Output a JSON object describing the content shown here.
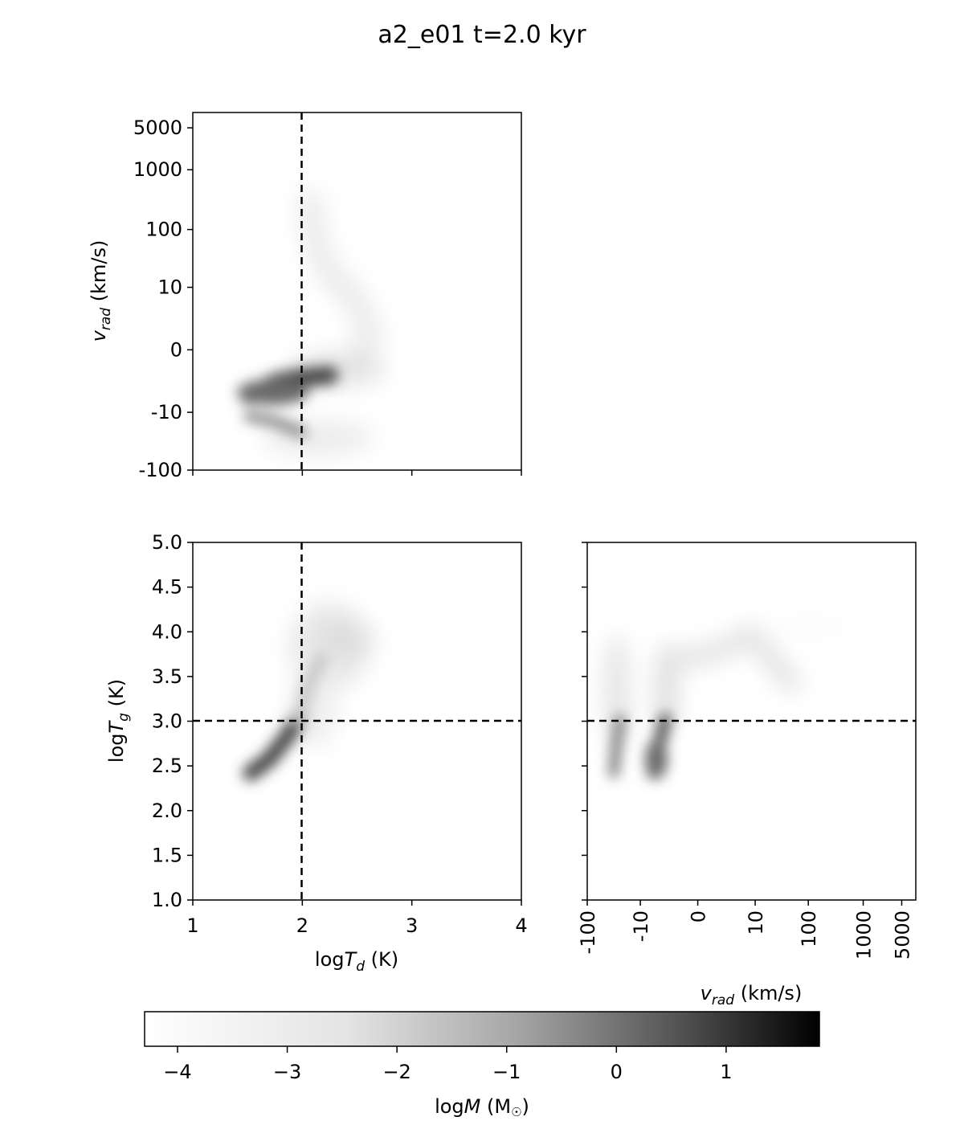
{
  "title": "a2_e01 t=2.0 kyr",
  "chart_data": [
    {
      "panel": "top-left",
      "type": "heatmap",
      "xlim": [
        1,
        4
      ],
      "y_scale": "symlog",
      "y_ticks": [
        -100,
        -10,
        0,
        10,
        100,
        1000,
        5000
      ],
      "y_tick_labels": [
        "-100",
        "-10",
        "0",
        "10",
        "100",
        "1000",
        "5000"
      ],
      "ylabel": "v_rad (km/s)",
      "ylabel_parts": {
        "sym": "v",
        "sub": "rad",
        "rest": " (km/s)"
      },
      "x_tick_labels_shown": false,
      "reference_lines": [
        {
          "orient": "vertical",
          "x": 2
        }
      ],
      "density_regions": [
        {
          "x": [
            1.5,
            2.0
          ],
          "y": [
            0,
            10
          ],
          "logM": 0.5
        },
        {
          "x": [
            1.5,
            1.8
          ],
          "y": [
            -10,
            0
          ],
          "logM": -1.0
        },
        {
          "x": [
            1.8,
            2.5
          ],
          "y": [
            -10,
            -100
          ],
          "logM": -3.0
        },
        {
          "x": [
            2.0,
            2.6
          ],
          "y": [
            10,
            1000
          ],
          "logM": -3.0
        },
        {
          "x": [
            2.1,
            2.4
          ],
          "y": [
            1000,
            4500
          ],
          "logM": -4.0
        }
      ]
    },
    {
      "panel": "bottom-left",
      "type": "heatmap",
      "xlim": [
        1,
        4
      ],
      "ylim": [
        1.0,
        5.0
      ],
      "x_ticks": [
        1,
        2,
        3,
        4
      ],
      "x_tick_labels": [
        "1",
        "2",
        "3",
        "4"
      ],
      "y_ticks": [
        1.0,
        1.5,
        2.0,
        2.5,
        3.0,
        3.5,
        4.0,
        4.5,
        5.0
      ],
      "y_tick_labels": [
        "1.0",
        "1.5",
        "2.0",
        "2.5",
        "3.0",
        "3.5",
        "4.0",
        "4.5",
        "5.0"
      ],
      "xlabel": "logT_d (K)",
      "xlabel_parts": {
        "pre": "log",
        "sym": "T",
        "sub": "d",
        "rest": " (K)"
      },
      "ylabel": "logT_g (K)",
      "ylabel_parts": {
        "pre": "log",
        "sym": "T",
        "sub": "g",
        "rest": " (K)"
      },
      "reference_lines": [
        {
          "orient": "vertical",
          "x": 2
        },
        {
          "orient": "horizontal",
          "y": 3.0
        }
      ],
      "density_regions": [
        {
          "x": [
            1.5,
            2.0
          ],
          "y": [
            2.35,
            3.0
          ],
          "logM": 0.5
        },
        {
          "x": [
            1.9,
            2.6
          ],
          "y": [
            3.0,
            4.0
          ],
          "logM": -2.5
        },
        {
          "x": [
            2.1,
            2.6
          ],
          "y": [
            3.7,
            4.05
          ],
          "logM": -2.0
        }
      ]
    },
    {
      "panel": "bottom-right",
      "type": "heatmap",
      "x_scale": "symlog",
      "ylim": [
        1.0,
        5.0
      ],
      "x_ticks": [
        -100,
        -10,
        0,
        10,
        100,
        1000,
        5000
      ],
      "x_tick_labels": [
        "-100",
        "-10",
        "0",
        "10",
        "100",
        "1000",
        "5000"
      ],
      "xlabel": "v_rad (km/s)",
      "xlabel_parts": {
        "sym": "v",
        "sub": "rad",
        "rest": " (km/s)"
      },
      "y_tick_labels_shown": false,
      "reference_lines": [
        {
          "orient": "horizontal",
          "y": 3.0
        }
      ],
      "density_regions": [
        {
          "x": [
            -10,
            10
          ],
          "y": [
            2.35,
            3.0
          ],
          "logM": 0.0
        },
        {
          "x": [
            10,
            1000
          ],
          "y": [
            3.6,
            4.0
          ],
          "logM": -2.5
        },
        {
          "x": [
            1000,
            5000
          ],
          "y": [
            4.0,
            4.1
          ],
          "logM": -3.5
        }
      ]
    }
  ],
  "colorbar": {
    "ticks": [
      -4,
      -3,
      -2,
      -1,
      0,
      1
    ],
    "tick_labels": [
      "−4",
      "−3",
      "−2",
      "−1",
      "0",
      "1"
    ],
    "range": [
      -4.3,
      1.85
    ],
    "label": "logM (M☉)",
    "label_parts": {
      "pre": "log",
      "sym": "M",
      "rest_open": " (M",
      "sun": "☉",
      "rest_close": ")"
    },
    "colormap": {
      "low": "#ffffff",
      "high": "#000000"
    }
  }
}
